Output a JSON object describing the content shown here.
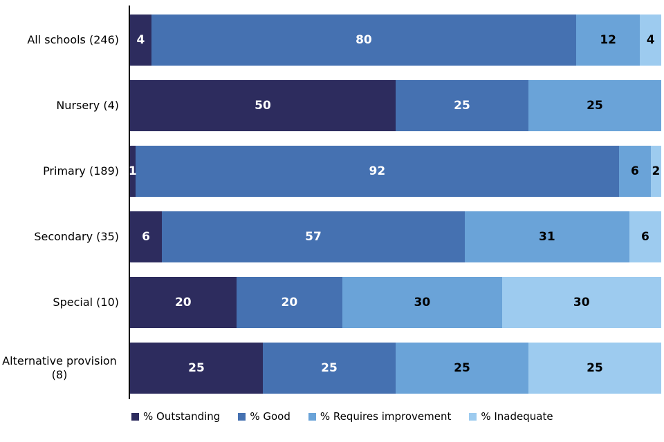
{
  "chart_data": {
    "type": "bar",
    "subtype": "stacked-100",
    "orientation": "horizontal",
    "title": "",
    "xlabel": "",
    "ylabel": "",
    "xlim": [
      0,
      100
    ],
    "unit": "percent",
    "grid": false,
    "legend_position": "bottom",
    "axis_color": "#000000",
    "categories": [
      "All schools (246)",
      "Nursery (4)",
      "Primary (189)",
      "Secondary (35)",
      "Special (10)",
      "Alternative provision (8)"
    ],
    "series": [
      {
        "name": "% Outstanding",
        "color": "#2d2c5e",
        "label_color": "#ffffff",
        "values": [
          4,
          50,
          1,
          6,
          20,
          25
        ]
      },
      {
        "name": "% Good",
        "color": "#4571b1",
        "label_color": "#ffffff",
        "values": [
          80,
          25,
          92,
          57,
          20,
          25
        ]
      },
      {
        "name": "% Requires improvement",
        "color": "#6aa3d8",
        "label_color": "#000000",
        "values": [
          12,
          25,
          6,
          31,
          30,
          25
        ]
      },
      {
        "name": "% Inadequate",
        "color": "#9dcbef",
        "label_color": "#000000",
        "values": [
          4,
          0,
          2,
          6,
          30,
          25
        ]
      }
    ]
  }
}
